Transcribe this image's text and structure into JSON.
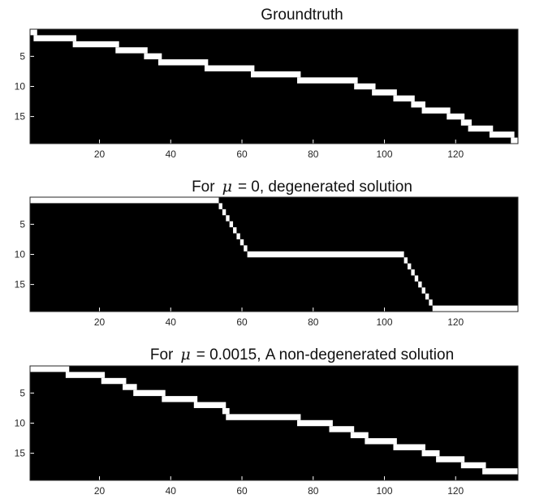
{
  "chart_data": [
    {
      "type": "heatmap",
      "title": "Groundtruth",
      "ncols": 137,
      "nrows": 19,
      "colors": {
        "on": "#ffffff",
        "off": "#000000"
      },
      "xticks": [
        20,
        40,
        60,
        80,
        100,
        120
      ],
      "yticks": [
        5,
        10,
        15
      ],
      "row_segments": [
        {
          "row": 1,
          "from": 1,
          "to": 2
        },
        {
          "row": 2,
          "from": 2,
          "to": 13
        },
        {
          "row": 3,
          "from": 13,
          "to": 25
        },
        {
          "row": 4,
          "from": 25,
          "to": 33
        },
        {
          "row": 5,
          "from": 33,
          "to": 37
        },
        {
          "row": 6,
          "from": 37,
          "to": 50
        },
        {
          "row": 7,
          "from": 50,
          "to": 63
        },
        {
          "row": 8,
          "from": 63,
          "to": 76
        },
        {
          "row": 9,
          "from": 76,
          "to": 92
        },
        {
          "row": 10,
          "from": 92,
          "to": 97
        },
        {
          "row": 11,
          "from": 97,
          "to": 103
        },
        {
          "row": 12,
          "from": 103,
          "to": 108
        },
        {
          "row": 13,
          "from": 108,
          "to": 111
        },
        {
          "row": 14,
          "from": 111,
          "to": 118
        },
        {
          "row": 15,
          "from": 118,
          "to": 122
        },
        {
          "row": 16,
          "from": 122,
          "to": 124
        },
        {
          "row": 17,
          "from": 124,
          "to": 130
        },
        {
          "row": 18,
          "from": 130,
          "to": 136
        },
        {
          "row": 19,
          "from": 136,
          "to": 137
        }
      ]
    },
    {
      "type": "heatmap",
      "title_prefix": "For",
      "title_symbol": "μ",
      "title_rest": "= 0, degenerated solution",
      "ncols": 137,
      "nrows": 19,
      "colors": {
        "on": "#ffffff",
        "off": "#000000"
      },
      "xticks": [
        20,
        40,
        60,
        80,
        100,
        120
      ],
      "yticks": [
        5,
        10,
        15
      ],
      "row_segments": [
        {
          "row": 1,
          "from": 1,
          "to": 53
        },
        {
          "row": 2,
          "from": 54,
          "to": 54
        },
        {
          "row": 3,
          "from": 55,
          "to": 55
        },
        {
          "row": 4,
          "from": 56,
          "to": 56
        },
        {
          "row": 5,
          "from": 57,
          "to": 57
        },
        {
          "row": 6,
          "from": 58,
          "to": 58
        },
        {
          "row": 7,
          "from": 59,
          "to": 59
        },
        {
          "row": 8,
          "from": 60,
          "to": 60
        },
        {
          "row": 9,
          "from": 61,
          "to": 61
        },
        {
          "row": 10,
          "from": 62,
          "to": 105
        },
        {
          "row": 11,
          "from": 106,
          "to": 106
        },
        {
          "row": 12,
          "from": 107,
          "to": 107
        },
        {
          "row": 13,
          "from": 108,
          "to": 108
        },
        {
          "row": 14,
          "from": 109,
          "to": 109
        },
        {
          "row": 15,
          "from": 110,
          "to": 110
        },
        {
          "row": 16,
          "from": 111,
          "to": 111
        },
        {
          "row": 17,
          "from": 112,
          "to": 112
        },
        {
          "row": 18,
          "from": 113,
          "to": 113
        },
        {
          "row": 19,
          "from": 114,
          "to": 137
        }
      ]
    },
    {
      "type": "heatmap",
      "title_prefix": "For",
      "title_symbol": "μ",
      "title_rest": "= 0.0015, A non-degenerated solution",
      "ncols": 137,
      "nrows": 19,
      "colors": {
        "on": "#ffffff",
        "off": "#000000"
      },
      "xticks": [
        20,
        40,
        60,
        80,
        100,
        120
      ],
      "yticks": [
        5,
        10,
        15
      ],
      "row_segments": [
        {
          "row": 1,
          "from": 1,
          "to": 11
        },
        {
          "row": 2,
          "from": 11,
          "to": 21
        },
        {
          "row": 3,
          "from": 21,
          "to": 27
        },
        {
          "row": 4,
          "from": 27,
          "to": 30
        },
        {
          "row": 5,
          "from": 30,
          "to": 38
        },
        {
          "row": 6,
          "from": 38,
          "to": 47
        },
        {
          "row": 7,
          "from": 47,
          "to": 55
        },
        {
          "row": 8,
          "from": 55,
          "to": 56
        },
        {
          "row": 9,
          "from": 56,
          "to": 76
        },
        {
          "row": 10,
          "from": 76,
          "to": 85
        },
        {
          "row": 11,
          "from": 85,
          "to": 91
        },
        {
          "row": 12,
          "from": 91,
          "to": 95
        },
        {
          "row": 13,
          "from": 95,
          "to": 103
        },
        {
          "row": 14,
          "from": 103,
          "to": 111
        },
        {
          "row": 15,
          "from": 111,
          "to": 115
        },
        {
          "row": 16,
          "from": 115,
          "to": 122
        },
        {
          "row": 17,
          "from": 122,
          "to": 128
        },
        {
          "row": 18,
          "from": 128,
          "to": 137
        }
      ]
    }
  ]
}
